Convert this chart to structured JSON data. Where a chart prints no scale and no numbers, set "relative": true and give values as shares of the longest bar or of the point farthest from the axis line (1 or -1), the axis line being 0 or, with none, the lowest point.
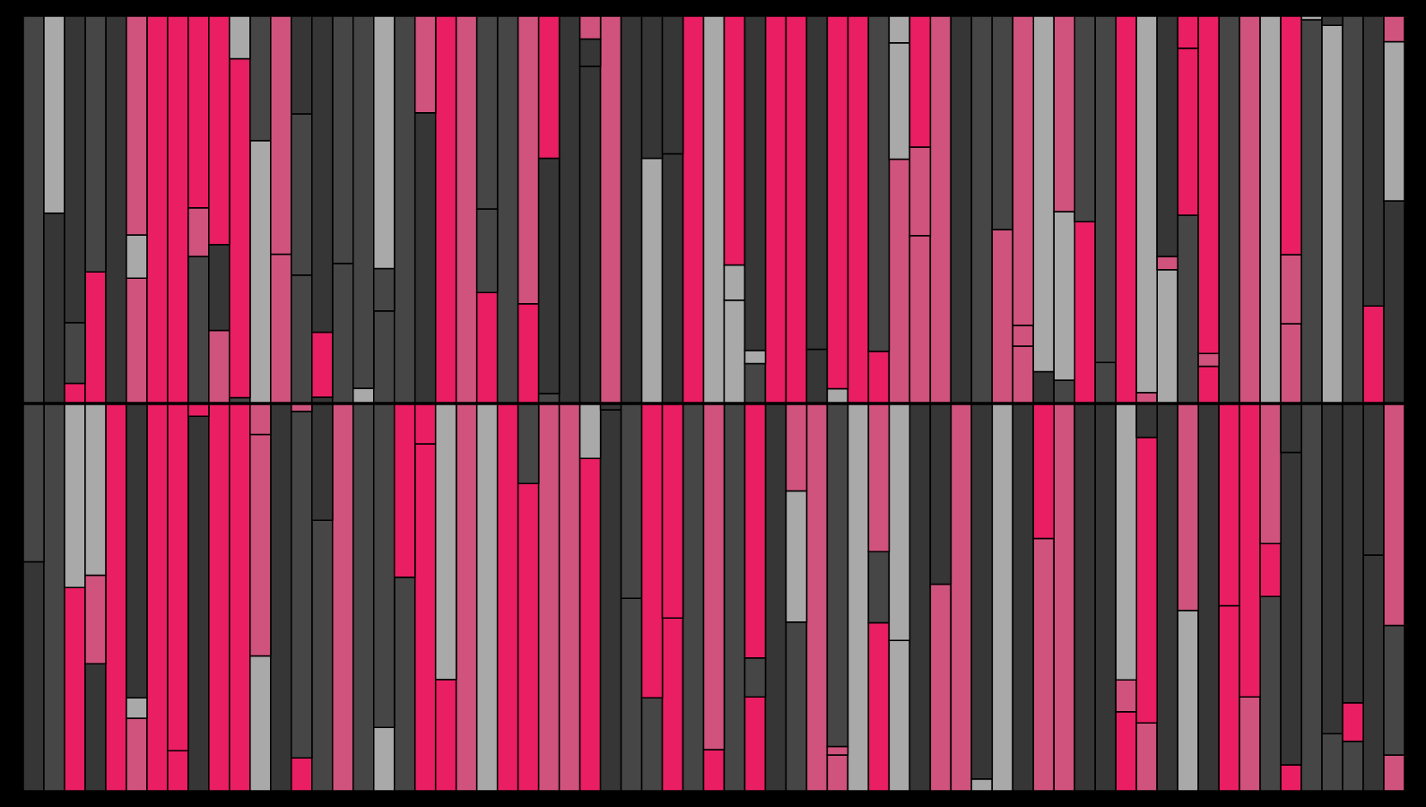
{
  "chart_data": [
    {
      "type": "bar",
      "stacked": true,
      "relative": true,
      "categories": [
        null,
        null,
        null,
        null,
        null,
        null,
        null,
        null,
        null,
        null,
        null,
        null,
        null,
        null,
        null,
        null,
        null,
        null,
        null,
        null,
        null,
        null,
        null,
        null,
        null,
        null,
        null,
        null,
        null,
        null,
        null,
        null,
        null,
        null,
        null,
        null,
        null,
        null,
        null,
        null,
        null,
        null,
        null,
        null,
        null,
        null,
        null,
        null,
        null,
        null,
        null,
        null,
        null,
        null,
        null,
        null,
        null,
        null,
        null,
        null,
        null,
        null,
        null,
        null,
        null,
        null,
        null
      ],
      "series": [
        {
          "values": [
            1,
            0.49,
            0.05,
            0.338,
            1,
            0.322,
            1,
            1,
            0.378,
            0.187,
            0.013,
            0.678,
            0.384,
            0.33,
            0.014,
            0.36,
            0.037,
            0.237,
            1,
            0.75,
            1,
            1,
            0.285,
            1,
            0.256,
            0.024,
            1,
            0.87,
            1,
            1,
            0.632,
            0.644,
            1,
            1,
            0.265,
            0.101,
            1,
            1,
            0.138,
            0.036,
            1,
            0.133,
            0.63,
            0.432,
            1,
            1,
            1,
            0.448,
            0.146,
            0.08,
            0.058,
            0.468,
            0.104,
            1,
            0.026,
            0.344,
            0.485,
            0.094,
            1,
            1,
            1,
            0.204,
            0.991,
            0.976,
            1,
            0.25,
            0.522
          ],
          "colors": [
            "#464646",
            "#363636",
            "#e91e63",
            "#e91e63",
            "#363636",
            "#cf537c",
            "#e91e63",
            "#e91e63",
            "#464646",
            "#cf537c",
            "#464646",
            "#a9a9a9",
            "#cf537c",
            "#464646",
            "#363636",
            "#464646",
            "#a9a9a9",
            "#464646",
            "#464646",
            "#363636",
            "#e91e63",
            "#cf537c",
            "#e91e63",
            "#464646",
            "#e91e63",
            "#464646",
            "#363636",
            "#363636",
            "#cf537c",
            "#363636",
            "#a9a9a9",
            "#363636",
            "#e91e63",
            "#a9a9a9",
            "#a9a9a9",
            "#464646",
            "#e91e63",
            "#e91e63",
            "#363636",
            "#a9a9a9",
            "#e91e63",
            "#e91e63",
            "#cf537c",
            "#cf537c",
            "#cf537c",
            "#363636",
            "#464646",
            "#cf537c",
            "#cf537c",
            "#363636",
            "#464646",
            "#e91e63",
            "#464646",
            "#e91e63",
            "#cf537c",
            "#a9a9a9",
            "#464646",
            "#e91e63",
            "#464646",
            "#cf537c",
            "#a9a9a9",
            "#cf537c",
            "#464646",
            "#a9a9a9",
            "#464646",
            "#e91e63",
            "#363636"
          ]
        },
        {
          "values": [
            null,
            0.51,
            0.157,
            0.662,
            null,
            0.112,
            null,
            null,
            0.126,
            0.222,
            0.877,
            0.322,
            0.616,
            0.417,
            0.168,
            0.64,
            0.963,
            0.11,
            null,
            0.25,
            null,
            null,
            0.216,
            null,
            0.744,
            0.608,
            null,
            0.071,
            null,
            null,
            0.368,
            0.356,
            null,
            null,
            0.091,
            0.034,
            null,
            null,
            0.862,
            0.964,
            null,
            0.867,
            0.301,
            0.229,
            null,
            null,
            null,
            0.552,
            0.054,
            0.92,
            0.436,
            0.532,
            0.896,
            null,
            0.974,
            0.034,
            0.432,
            0.033,
            null,
            null,
            null,
            0.179,
            0.009,
            0.024,
            null,
            0.75,
            0.412
          ],
          "colors": [
            null,
            "#a9a9a9",
            "#464646",
            "#464646",
            null,
            "#a9a9a9",
            null,
            null,
            "#cf537c",
            "#363636",
            "#e91e63",
            "#464646",
            "#cf537c",
            "#464646",
            "#e91e63",
            "#464646",
            "#464646",
            "#464646",
            null,
            "#cf537c",
            null,
            null,
            "#464646",
            null,
            "#cf537c",
            "#363636",
            null,
            "#363636",
            null,
            null,
            "#363636",
            "#363636",
            null,
            null,
            "#a9a9a9",
            "#a9a9a9",
            null,
            null,
            "#363636",
            "#e91e63",
            null,
            "#464646",
            "#a9a9a9",
            "#cf537c",
            null,
            null,
            null,
            "#464646",
            "#cf537c",
            "#a9a9a9",
            "#a9a9a9",
            "#464646",
            "#464646",
            null,
            "#a9a9a9",
            "#cf537c",
            "#e91e63",
            "#cf537c",
            null,
            null,
            null,
            "#cf537c",
            "#a9a9a9",
            "#363636",
            null,
            "#363636",
            "#a9a9a9"
          ]
        },
        {
          "values": [
            null,
            null,
            0.793,
            null,
            null,
            0.566,
            null,
            null,
            0.496,
            0.591,
            0.11,
            null,
            null,
            0.253,
            0.818,
            null,
            null,
            0.653,
            null,
            null,
            null,
            null,
            0.499,
            null,
            null,
            0.368,
            null,
            0.059,
            null,
            null,
            null,
            null,
            null,
            null,
            0.644,
            0.865,
            null,
            null,
            null,
            null,
            null,
            null,
            0.069,
            0.339,
            null,
            null,
            null,
            null,
            0.8,
            null,
            0.506,
            null,
            null,
            null,
            null,
            0.622,
            0.083,
            0.873,
            null,
            null,
            null,
            0.617,
            null,
            null,
            null,
            null,
            0.066
          ],
          "colors": [
            null,
            null,
            "#363636",
            null,
            null,
            "#cf537c",
            null,
            null,
            "#e91e63",
            "#e91e63",
            "#a9a9a9",
            null,
            null,
            "#363636",
            "#363636",
            null,
            null,
            "#a9a9a9",
            null,
            null,
            null,
            null,
            "#464646",
            null,
            null,
            "#e91e63",
            null,
            "#cf537c",
            null,
            null,
            null,
            null,
            null,
            null,
            "#e91e63",
            "#363636",
            null,
            null,
            null,
            null,
            null,
            null,
            "#a9a9a9",
            "#e91e63",
            null,
            null,
            null,
            null,
            "#cf537c",
            null,
            "#cf537c",
            null,
            null,
            null,
            null,
            "#363636",
            "#e91e63",
            "#e91e63",
            null,
            null,
            null,
            "#e91e63",
            null,
            null,
            null,
            null,
            "#cf537c"
          ]
        }
      ]
    },
    {
      "type": "bar",
      "stacked": true,
      "relative": true,
      "categories": [
        null,
        null,
        null,
        null,
        null,
        null,
        null,
        null,
        null,
        null,
        null,
        null,
        null,
        null,
        null,
        null,
        null,
        null,
        null,
        null,
        null,
        null,
        null,
        null,
        null,
        null,
        null,
        null,
        null,
        null,
        null,
        null,
        null,
        null,
        null,
        null,
        null,
        null,
        null,
        null,
        null,
        null,
        null,
        null,
        null,
        null,
        null,
        null,
        null,
        null,
        null,
        null,
        null,
        null,
        null,
        null,
        null,
        null,
        null,
        null,
        null,
        null,
        null,
        null,
        null,
        null,
        null
      ],
      "series": [
        {
          "values": [
            0.593,
            1,
            0.526,
            0.329,
            1,
            0.188,
            1,
            0.104,
            0.969,
            1,
            1,
            0.349,
            1,
            0.085,
            0.7,
            1,
            1,
            0.164,
            0.553,
            0.898,
            0.288,
            1,
            1,
            1,
            0.795,
            1,
            1,
            0.86,
            0.986,
            0.498,
            0.241,
            0.447,
            1,
            0.107,
            1,
            0.243,
            1,
            0.437,
            1,
            0.093,
            1,
            0.435,
            0.389,
            1,
            0.535,
            1,
            0.031,
            1,
            1,
            0.653,
            1,
            1,
            1,
            0.205,
            0.176,
            1,
            0.467,
            1,
            0.479,
            0.243,
            0.503,
            0.067,
            1,
            0.148,
            0.128,
            0.61,
            0.093
          ],
          "colors": [
            "#363636",
            "#464646",
            "#e91e63",
            "#363636",
            "#e91e63",
            "#cf537c",
            "#e91e63",
            "#e91e63",
            "#363636",
            "#e91e63",
            "#e91e63",
            "#a9a9a9",
            "#363636",
            "#e91e63",
            "#464646",
            "#cf537c",
            "#464646",
            "#a9a9a9",
            "#464646",
            "#e91e63",
            "#e91e63",
            "#cf537c",
            "#a9a9a9",
            "#e91e63",
            "#e91e63",
            "#cf537c",
            "#cf537c",
            "#e91e63",
            "#363636",
            "#464646",
            "#464646",
            "#e91e63",
            "#464646",
            "#e91e63",
            "#464646",
            "#e91e63",
            "#363636",
            "#464646",
            "#cf537c",
            "#cf537c",
            "#a9a9a9",
            "#e91e63",
            "#a9a9a9",
            "#363636",
            "#cf537c",
            "#cf537c",
            "#a9a9a9",
            "#a9a9a9",
            "#363636",
            "#cf537c",
            "#cf537c",
            "#363636",
            "#363636",
            "#e91e63",
            "#cf537c",
            "#363636",
            "#a9a9a9",
            "#363636",
            "#e91e63",
            "#cf537c",
            "#464646",
            "#e91e63",
            "#464646",
            "#464646",
            "#464646",
            "#363636",
            "#cf537c"
          ]
        },
        {
          "values": [
            0.407,
            null,
            0.474,
            0.229,
            null,
            0.053,
            null,
            0.896,
            0.031,
            null,
            null,
            0.573,
            null,
            0.897,
            0.3,
            null,
            null,
            0.836,
            0.447,
            0.102,
            0.712,
            null,
            null,
            null,
            0.205,
            null,
            null,
            0.14,
            0.014,
            0.502,
            0.759,
            0.553,
            null,
            0.893,
            null,
            0.101,
            null,
            0.339,
            null,
            0.022,
            null,
            0.184,
            0.611,
            null,
            0.465,
            null,
            0.969,
            null,
            null,
            0.347,
            null,
            null,
            null,
            0.082,
            0.739,
            null,
            0.533,
            null,
            0.521,
            0.757,
            0.137,
            0.809,
            null,
            0.852,
            0.1,
            0.39,
            0.335
          ],
          "colors": [
            "#464646",
            null,
            "#a9a9a9",
            "#cf537c",
            null,
            "#a9a9a9",
            null,
            "#e91e63",
            "#e91e63",
            null,
            null,
            "#cf537c",
            null,
            "#464646",
            "#363636",
            null,
            null,
            "#464646",
            "#e91e63",
            "#e91e63",
            "#a9a9a9",
            null,
            null,
            null,
            "#464646",
            null,
            null,
            "#a9a9a9",
            "#363636",
            "#464646",
            "#e91e63",
            "#e91e63",
            null,
            "#cf537c",
            null,
            "#464646",
            null,
            "#a9a9a9",
            null,
            "#cf537c",
            null,
            "#464646",
            "#a9a9a9",
            null,
            "#363636",
            null,
            "#363636",
            null,
            null,
            "#e91e63",
            null,
            null,
            null,
            "#cf537c",
            "#e91e63",
            null,
            "#cf537c",
            null,
            "#e91e63",
            "#e91e63",
            "#e91e63",
            "#363636",
            null,
            "#363636",
            "#e91e63",
            "#363636",
            "#464646"
          ]
        },
        {
          "values": [
            null,
            null,
            null,
            0.442,
            null,
            0.759,
            null,
            null,
            null,
            null,
            null,
            0.078,
            null,
            0.018,
            null,
            null,
            null,
            null,
            null,
            null,
            null,
            null,
            null,
            null,
            null,
            null,
            null,
            null,
            null,
            null,
            null,
            null,
            null,
            null,
            null,
            0.656,
            null,
            0.224,
            null,
            0.885,
            null,
            0.381,
            null,
            null,
            null,
            null,
            null,
            null,
            null,
            null,
            null,
            null,
            null,
            0.713,
            0.085,
            null,
            null,
            null,
            null,
            null,
            0.36,
            0.124,
            null,
            null,
            0.772,
            null,
            0.572
          ],
          "colors": [
            null,
            null,
            null,
            "#a9a9a9",
            null,
            "#363636",
            null,
            null,
            null,
            null,
            null,
            "#cf537c",
            null,
            "#cf537c",
            null,
            null,
            null,
            null,
            null,
            null,
            null,
            null,
            null,
            null,
            null,
            null,
            null,
            null,
            null,
            null,
            null,
            null,
            null,
            null,
            null,
            "#e91e63",
            null,
            "#cf537c",
            null,
            "#464646",
            null,
            "#cf537c",
            null,
            null,
            null,
            null,
            null,
            null,
            null,
            null,
            null,
            null,
            null,
            "#a9a9a9",
            "#363636",
            null,
            null,
            null,
            null,
            null,
            "#cf537c",
            "#363636",
            null,
            null,
            "#363636",
            null,
            "#cf537c"
          ]
        }
      ]
    }
  ]
}
